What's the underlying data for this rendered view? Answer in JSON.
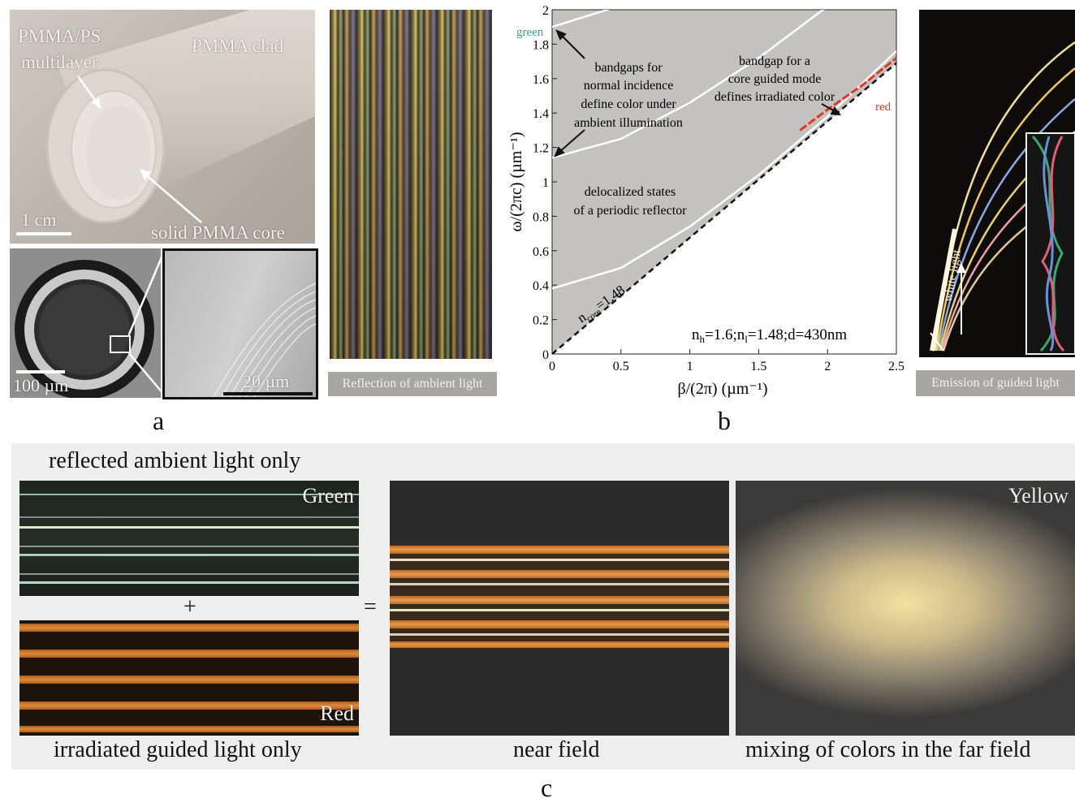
{
  "panel_letters": {
    "a": "a",
    "b": "b",
    "c": "c"
  },
  "panel_a": {
    "rod_labels": {
      "multilayer_line1": "PMMA/PS",
      "multilayer_line2": "multilayer",
      "clad": "PMMA clad",
      "core": "solid PMMA core",
      "scale_rod": "1 cm"
    },
    "sem_labels": {
      "scale_cross_section": "100 µm",
      "scale_zoom": "20 µm"
    }
  },
  "strip_labels": {
    "reflection": "Reflection of ambient light",
    "emission": "Emission of guided light",
    "white_light": "white light"
  },
  "chart_data": {
    "type": "line",
    "xlabel": "β/(2π) (µm⁻¹)",
    "ylabel": "ω/(2πc) (µm⁻¹)",
    "xlim": [
      0,
      2.5
    ],
    "ylim": [
      0,
      2
    ],
    "x_ticks": [
      "0",
      "0.5",
      "1",
      "1.5",
      "2",
      "2.5"
    ],
    "y_ticks": [
      "0",
      "0.2",
      "0.4",
      "0.6",
      "0.8",
      "1",
      "1.2",
      "1.4",
      "1.6",
      "1.8",
      "2"
    ],
    "light_line_slope": 0.676,
    "series": [
      {
        "name": "",
        "role": "bandgap edge",
        "x": [
          0,
          0.5,
          1.0,
          1.5,
          2.0,
          2.5
        ],
        "y": [
          1.14,
          1.25,
          1.46,
          1.72,
          2.02,
          2.38
        ]
      },
      {
        "name": "",
        "role": "bandgap edge",
        "x": [
          0,
          0.5,
          1.0,
          1.5,
          2.0,
          2.5
        ],
        "y": [
          0.38,
          0.5,
          0.74,
          1.04,
          1.38,
          1.76
        ]
      },
      {
        "name": "",
        "role": "bandgap edge",
        "x": [
          0,
          0.4,
          0.8
        ],
        "y": [
          1.9,
          2.0,
          2.14
        ]
      },
      {
        "name": "",
        "role": "core guided band",
        "x": [
          1.8,
          2.0,
          2.25,
          2.5
        ],
        "y": [
          1.3,
          1.42,
          1.56,
          1.72
        ]
      }
    ],
    "annotations": {
      "green": "green",
      "red": "red",
      "bandgap_normal": [
        "bandgaps for",
        "normal incidence",
        "define color under",
        "ambient illumination"
      ],
      "bandgap_core": [
        "bandgap for a",
        "core guided mode",
        "defines irradiated color"
      ],
      "delocalized": [
        "delocalized states",
        "of a periodic reflector"
      ],
      "ncore_label": "n",
      "ncore_sub": "core",
      "ncore_value": "=1.48",
      "params": "nh=1.6;nl=1.48;d=430nm",
      "params_parts": {
        "n1": "n",
        "h": "h",
        "mid": "=1.6;n",
        "l": "l",
        "end": "=1.48;d=430nm"
      }
    },
    "grid": false,
    "legend": "none"
  },
  "panel_c": {
    "top_left_caption": "reflected ambient light only",
    "green_label": "Green",
    "red_label": "Red",
    "yellow_label": "Yellow",
    "plus": "+",
    "equals": "=",
    "bottom_captions": {
      "irradiated": "irradiated guided light only",
      "near_field": "near field",
      "far_field": "mixing of colors in the far field"
    }
  },
  "colors": {
    "green_annotation": "#3a9c8a",
    "red_annotation": "#e0381f",
    "chart_bg": "#c4c2c0"
  }
}
